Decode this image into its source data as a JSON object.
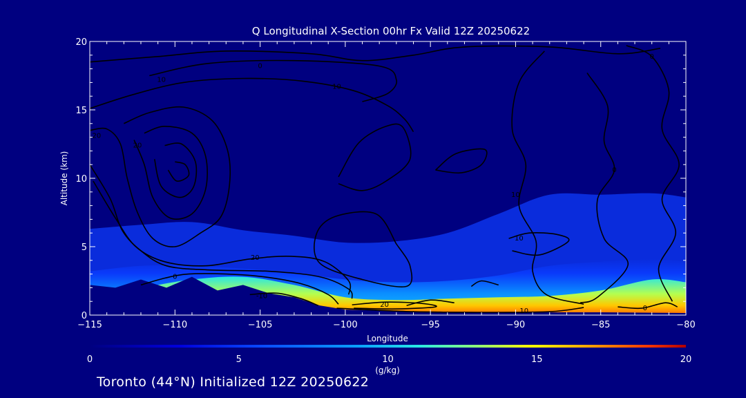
{
  "chart_data": {
    "type": "heatmap",
    "title": "Q Longitudinal X-Section 00hr  Fx Valid 12Z 20250622",
    "xlabel": "Longitude",
    "ylabel": "Altitude (km)",
    "xlim": [
      -115,
      -80
    ],
    "ylim": [
      0,
      20
    ],
    "x_ticks": [
      -115,
      -110,
      -105,
      -100,
      -95,
      -90,
      -85,
      -80
    ],
    "x_tick_labels": [
      "−115",
      "−110",
      "−105",
      "−100",
      "−95",
      "−90",
      "−85",
      "−80"
    ],
    "y_ticks": [
      0,
      5,
      10,
      15,
      20
    ],
    "y_tick_labels": [
      "0",
      "5",
      "10",
      "15",
      "20"
    ],
    "colorbar": {
      "label": "(g/kg)",
      "range": [
        0,
        20
      ],
      "ticks": [
        0,
        5,
        10,
        15,
        20
      ],
      "tick_labels": [
        "0",
        "5",
        "10",
        "15",
        "20"
      ]
    },
    "colors": {
      "background": "#000080",
      "axes": "#ffffff",
      "terrain": "#000080",
      "contour": "#000000",
      "colormap": [
        "#000080",
        "#0000c8",
        "#0a32ff",
        "#0a78ff",
        "#0ab4ff",
        "#28e6e6",
        "#64ffa0",
        "#b4ff50",
        "#fff000",
        "#ffa000",
        "#ff5000",
        "#e60000",
        "#a00000"
      ]
    },
    "moisture_layer": [
      {
        "x": -115,
        "top": 6.3,
        "mid": 3.2,
        "high": 1.5
      },
      {
        "x": -112,
        "top": 6.6,
        "mid": 3.6,
        "high": 2.0
      },
      {
        "x": -109,
        "top": 6.8,
        "mid": 3.6,
        "high": 2.6
      },
      {
        "x": -106,
        "top": 6.2,
        "mid": 3.4,
        "high": 2.8
      },
      {
        "x": -103,
        "top": 5.8,
        "mid": 3.1,
        "high": 2.2
      },
      {
        "x": -100,
        "top": 5.3,
        "mid": 2.6,
        "high": 1.3
      },
      {
        "x": -97,
        "top": 5.4,
        "mid": 2.4,
        "high": 1.1
      },
      {
        "x": -94,
        "top": 6.0,
        "mid": 2.5,
        "high": 1.2
      },
      {
        "x": -91,
        "top": 7.4,
        "mid": 2.9,
        "high": 1.3
      },
      {
        "x": -88,
        "top": 8.8,
        "mid": 3.6,
        "high": 1.4
      },
      {
        "x": -85,
        "top": 8.8,
        "mid": 3.9,
        "high": 1.8
      },
      {
        "x": -82,
        "top": 8.9,
        "mid": 4.1,
        "high": 2.6
      },
      {
        "x": -80,
        "top": 8.6,
        "mid": 3.9,
        "high": 2.4
      }
    ],
    "terrain_profile": [
      [
        -115,
        2.2
      ],
      [
        -113.5,
        2.0
      ],
      [
        -112,
        2.6
      ],
      [
        -110.5,
        2.0
      ],
      [
        -109,
        2.8
      ],
      [
        -107.5,
        1.8
      ],
      [
        -106,
        2.2
      ],
      [
        -104.5,
        1.6
      ],
      [
        -103,
        1.3
      ],
      [
        -101.5,
        0.7
      ],
      [
        -100,
        0.4
      ],
      [
        -97,
        0.3
      ],
      [
        -94,
        0.25
      ],
      [
        -90,
        0.2
      ],
      [
        -85,
        0.2
      ],
      [
        -80,
        0.15
      ]
    ],
    "contour_levels_labeled": [
      "10",
      "10",
      "0",
      "20",
      "20",
      "0",
      "-10",
      "20",
      "10",
      "0",
      "10",
      "0",
      "10",
      "0",
      "0"
    ],
    "contours": [
      {
        "label": "10",
        "label_at": [
          -110.8,
          17.2
        ],
        "points": [
          [
            -115,
            18.5
          ],
          [
            -111,
            18.9
          ],
          [
            -107,
            19.3
          ],
          [
            -102,
            19.1
          ],
          [
            -99,
            18.6
          ],
          [
            -96,
            19.0
          ],
          [
            -93,
            19.6
          ],
          [
            -88,
            19.6
          ],
          [
            -84,
            19.1
          ],
          [
            -81.5,
            19.5
          ]
        ]
      },
      {
        "label": "10",
        "label_at": [
          -100.5,
          16.7
        ],
        "points": [
          [
            -115,
            15.1
          ],
          [
            -112.5,
            16.1
          ],
          [
            -109.5,
            17.0
          ],
          [
            -106,
            17.3
          ],
          [
            -102.5,
            17.1
          ],
          [
            -99.5,
            16.4
          ],
          [
            -97.5,
            15.3
          ],
          [
            -96.5,
            14.3
          ],
          [
            -96.0,
            13.4
          ]
        ]
      },
      {
        "label": "0",
        "label_at": [
          -105.0,
          18.2
        ],
        "points": [
          [
            -111.5,
            17.5
          ],
          [
            -108,
            18.4
          ],
          [
            -103,
            18.6
          ],
          [
            -98,
            18.2
          ],
          [
            -97,
            17.2
          ],
          [
            -97.5,
            16.2
          ],
          [
            -99,
            15.6
          ]
        ]
      },
      {
        "label": "20",
        "label_at": [
          -114.6,
          13.1
        ],
        "points": [
          [
            -115,
            13.5
          ],
          [
            -114,
            13.6
          ],
          [
            -113.2,
            12.5
          ],
          [
            -112.8,
            10.0
          ],
          [
            -112.2,
            7.5
          ],
          [
            -111.3,
            5.6
          ],
          [
            -110,
            5.0
          ],
          [
            -108.5,
            6.0
          ],
          [
            -107.3,
            7.2
          ],
          [
            -106.8,
            9.5
          ],
          [
            -106.9,
            12.0
          ],
          [
            -107.8,
            14.2
          ],
          [
            -109.5,
            15.2
          ],
          [
            -111.5,
            14.8
          ],
          [
            -113.0,
            14.0
          ]
        ]
      },
      {
        "label": "20",
        "label_at": [
          -112.2,
          12.4
        ],
        "points": [
          [
            -112.4,
            12.8
          ],
          [
            -111.8,
            11.0
          ],
          [
            -111.3,
            8.6
          ],
          [
            -110.3,
            7.1
          ],
          [
            -109.0,
            7.4
          ],
          [
            -108.2,
            9.2
          ],
          [
            -108.2,
            11.6
          ],
          [
            -109.0,
            13.3
          ],
          [
            -110.6,
            13.8
          ],
          [
            -111.8,
            13.3
          ]
        ]
      },
      {
        "label": "",
        "label_at": null,
        "points": [
          [
            -111.2,
            11.4
          ],
          [
            -110.8,
            9.4
          ],
          [
            -109.7,
            8.6
          ],
          [
            -108.9,
            9.4
          ],
          [
            -108.8,
            11.2
          ],
          [
            -109.6,
            12.5
          ],
          [
            -110.6,
            12.4
          ]
        ]
      },
      {
        "label": "",
        "label_at": null,
        "points": [
          [
            -110.4,
            10.6
          ],
          [
            -109.9,
            9.8
          ],
          [
            -109.2,
            10.2
          ],
          [
            -109.4,
            11.0
          ],
          [
            -110.0,
            11.2
          ]
        ]
      },
      {
        "label": "",
        "label_at": null,
        "points": [
          [
            -115,
            11.0
          ],
          [
            -113.8,
            8.5
          ],
          [
            -113.1,
            6.2
          ],
          [
            -112.0,
            4.7
          ],
          [
            -110.5,
            3.6
          ],
          [
            -108,
            3.3
          ],
          [
            -104.5,
            3.2
          ],
          [
            -101.5,
            2.8
          ],
          [
            -99.8,
            1.9
          ],
          [
            -99.6,
            1.2
          ]
        ]
      },
      {
        "label": "20",
        "label_at": [
          -105.3,
          4.2
        ],
        "points": [
          [
            -114.8,
            9.8
          ],
          [
            -113.5,
            7.1
          ],
          [
            -112.3,
            5.0
          ],
          [
            -110.6,
            3.9
          ],
          [
            -108.2,
            3.6
          ],
          [
            -105.6,
            4.1
          ],
          [
            -103.2,
            4.3
          ],
          [
            -101.2,
            3.9
          ],
          [
            -99.8,
            2.5
          ],
          [
            -99.8,
            1.5
          ]
        ]
      },
      {
        "label": "0",
        "label_at": [
          -110.0,
          2.8
        ],
        "points": [
          [
            -112.0,
            2.2
          ],
          [
            -110.6,
            2.7
          ],
          [
            -109.2,
            3.0
          ],
          [
            -107.0,
            3.0
          ],
          [
            -104.8,
            2.8
          ],
          [
            -102.6,
            2.3
          ],
          [
            -101.0,
            1.5
          ],
          [
            -100.4,
            0.8
          ]
        ]
      },
      {
        "label": "-10",
        "label_at": [
          -104.9,
          1.4
        ],
        "points": [
          [
            -105.6,
            1.5
          ],
          [
            -104.0,
            1.6
          ],
          [
            -102.6,
            1.2
          ],
          [
            -101.6,
            0.7
          ]
        ]
      },
      {
        "label": "20",
        "label_at": [
          -97.7,
          0.75
        ],
        "points": [
          [
            -99.6,
            0.75
          ],
          [
            -97.6,
            0.95
          ],
          [
            -95.5,
            0.85
          ],
          [
            -94.7,
            0.6
          ],
          [
            -97.0,
            0.45
          ],
          [
            -99.5,
            0.5
          ]
        ]
      },
      {
        "label": "10",
        "label_at": [
          -89.5,
          0.3
        ],
        "points": [
          [
            -100.5,
            0.5
          ],
          [
            -96,
            0.25
          ],
          [
            -92,
            0.2
          ],
          [
            -88,
            0.25
          ],
          [
            -86,
            0.55
          ]
        ]
      },
      {
        "label": "",
        "label_at": null,
        "points": [
          [
            -100.4,
            10.1
          ],
          [
            -99.2,
            12.6
          ],
          [
            -97.6,
            13.8
          ],
          [
            -96.6,
            13.7
          ],
          [
            -96.2,
            11.4
          ],
          [
            -97.6,
            9.8
          ],
          [
            -99.0,
            9.1
          ],
          [
            -100.4,
            9.6
          ]
        ]
      },
      {
        "label": "",
        "label_at": null,
        "points": [
          [
            -94.7,
            10.6
          ],
          [
            -93.5,
            11.8
          ],
          [
            -91.8,
            12.1
          ],
          [
            -92.0,
            11.0
          ],
          [
            -93.2,
            10.4
          ],
          [
            -94.7,
            10.6
          ]
        ]
      },
      {
        "label": "",
        "label_at": null,
        "points": [
          [
            -97.0,
            5.2
          ],
          [
            -96.2,
            3.6
          ],
          [
            -96.4,
            2.1
          ],
          [
            -99.0,
            2.6
          ],
          [
            -101.5,
            3.8
          ],
          [
            -101.7,
            5.9
          ],
          [
            -100.6,
            7.2
          ],
          [
            -98.2,
            7.4
          ],
          [
            -97.0,
            5.2
          ]
        ]
      },
      {
        "label": "10",
        "label_at": [
          -89.8,
          5.6
        ],
        "points": [
          [
            -90.4,
            5.6
          ],
          [
            -89.2,
            6.0
          ],
          [
            -87.6,
            5.9
          ],
          [
            -86.9,
            5.4
          ],
          [
            -88.6,
            4.4
          ],
          [
            -90.2,
            4.7
          ]
        ]
      },
      {
        "label": "10",
        "label_at": [
          -90.0,
          8.8
        ],
        "points": [
          [
            -88.3,
            19.3
          ],
          [
            -89.8,
            17.0
          ],
          [
            -90.2,
            13.6
          ],
          [
            -89.4,
            11.0
          ],
          [
            -89.8,
            8.0
          ],
          [
            -88.8,
            5.4
          ],
          [
            -89.0,
            3.2
          ],
          [
            -88.2,
            1.5
          ],
          [
            -86.0,
            0.8
          ]
        ]
      },
      {
        "label": "0",
        "label_at": [
          -84.2,
          10.6
        ],
        "points": [
          [
            -85.8,
            17.7
          ],
          [
            -84.6,
            15.3
          ],
          [
            -84.8,
            12.7
          ],
          [
            -84.2,
            10.6
          ],
          [
            -85.2,
            8.4
          ],
          [
            -84.8,
            5.6
          ],
          [
            -83.4,
            3.7
          ],
          [
            -85.2,
            1.3
          ],
          [
            -86.2,
            0.9
          ]
        ]
      },
      {
        "label": "0",
        "label_at": [
          -82.0,
          18.9
        ],
        "points": [
          [
            -83.5,
            19.7
          ],
          [
            -82.0,
            18.9
          ],
          [
            -81.0,
            16.4
          ],
          [
            -81.4,
            13.6
          ],
          [
            -80.4,
            11.0
          ],
          [
            -81.4,
            8.5
          ],
          [
            -80.6,
            6.0
          ],
          [
            -81.6,
            3.4
          ],
          [
            -80.8,
            1.0
          ]
        ]
      },
      {
        "label": "0",
        "label_at": [
          -82.4,
          0.5
        ],
        "points": [
          [
            -84.0,
            0.6
          ],
          [
            -82.6,
            0.5
          ],
          [
            -81.2,
            0.9
          ],
          [
            -80.5,
            0.6
          ]
        ]
      },
      {
        "label": "",
        "label_at": null,
        "points": [
          [
            -92.6,
            2.1
          ],
          [
            -92.0,
            2.5
          ],
          [
            -91.0,
            2.2
          ]
        ]
      },
      {
        "label": "",
        "label_at": null,
        "points": [
          [
            -96.4,
            0.7
          ],
          [
            -95.0,
            1.1
          ],
          [
            -93.6,
            0.9
          ]
        ]
      }
    ]
  },
  "footer": {
    "text": "Toronto (44°N) Initialized 12Z 20250622"
  }
}
